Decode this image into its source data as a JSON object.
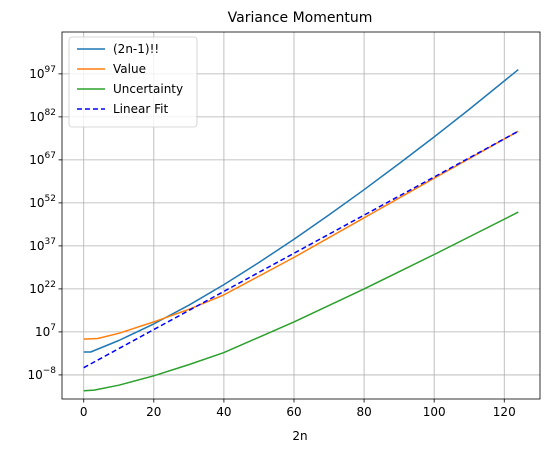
{
  "chart_data": {
    "type": "line",
    "title": "Variance Momentum",
    "xlabel": "2n",
    "ylabel": "",
    "y_scale": "log",
    "xlim": [
      -6.2,
      130.2
    ],
    "ylim_log10": [
      -16.4,
      111.6
    ],
    "x_ticks": [
      0,
      20,
      40,
      60,
      80,
      100,
      120
    ],
    "y_ticks": [
      {
        "exp": -8,
        "label": "10",
        "sup": "−8"
      },
      {
        "exp": 7,
        "label": "10",
        "sup": "7"
      },
      {
        "exp": 22,
        "label": "10",
        "sup": "22"
      },
      {
        "exp": 37,
        "label": "10",
        "sup": "37"
      },
      {
        "exp": 52,
        "label": "10",
        "sup": "52"
      },
      {
        "exp": 67,
        "label": "10",
        "sup": "67"
      },
      {
        "exp": 82,
        "label": "10",
        "sup": "82"
      },
      {
        "exp": 97,
        "label": "10",
        "sup": "97"
      }
    ],
    "grid": true,
    "legend_position": "top-left",
    "series": [
      {
        "name": "(2n-1)!!",
        "color": "#1f77b4",
        "dash": "",
        "x": [
          0,
          2,
          10,
          20,
          30,
          40,
          50,
          60,
          70,
          80,
          90,
          100,
          110,
          124
        ],
        "log10_y": [
          0,
          0,
          4.0,
          9.8,
          16.3,
          23.5,
          31.2,
          39.3,
          47.8,
          56.6,
          65.7,
          75.0,
          84.6,
          98.5
        ]
      },
      {
        "name": "Value",
        "color": "#ff7f0e",
        "dash": "",
        "x": [
          0,
          4,
          10,
          20,
          30,
          40,
          60,
          80,
          100,
          124
        ],
        "log10_y": [
          4.5,
          4.7,
          6.5,
          10.5,
          14.9,
          19.9,
          33.0,
          46.8,
          60.6,
          77.0
        ]
      },
      {
        "name": "Uncertainty",
        "color": "#2ca02c",
        "dash": "",
        "x": [
          0,
          3,
          10,
          20,
          30,
          40,
          60,
          80,
          100,
          124
        ],
        "log10_y": [
          -13.5,
          -13.3,
          -11.6,
          -8.3,
          -4.4,
          -0.2,
          10.5,
          22.0,
          34.0,
          48.8
        ]
      },
      {
        "name": "Linear Fit",
        "color": "#0000ff",
        "dash": "5,3",
        "x": [
          0,
          124
        ],
        "log10_y": [
          -5.5,
          77.0
        ]
      }
    ]
  }
}
